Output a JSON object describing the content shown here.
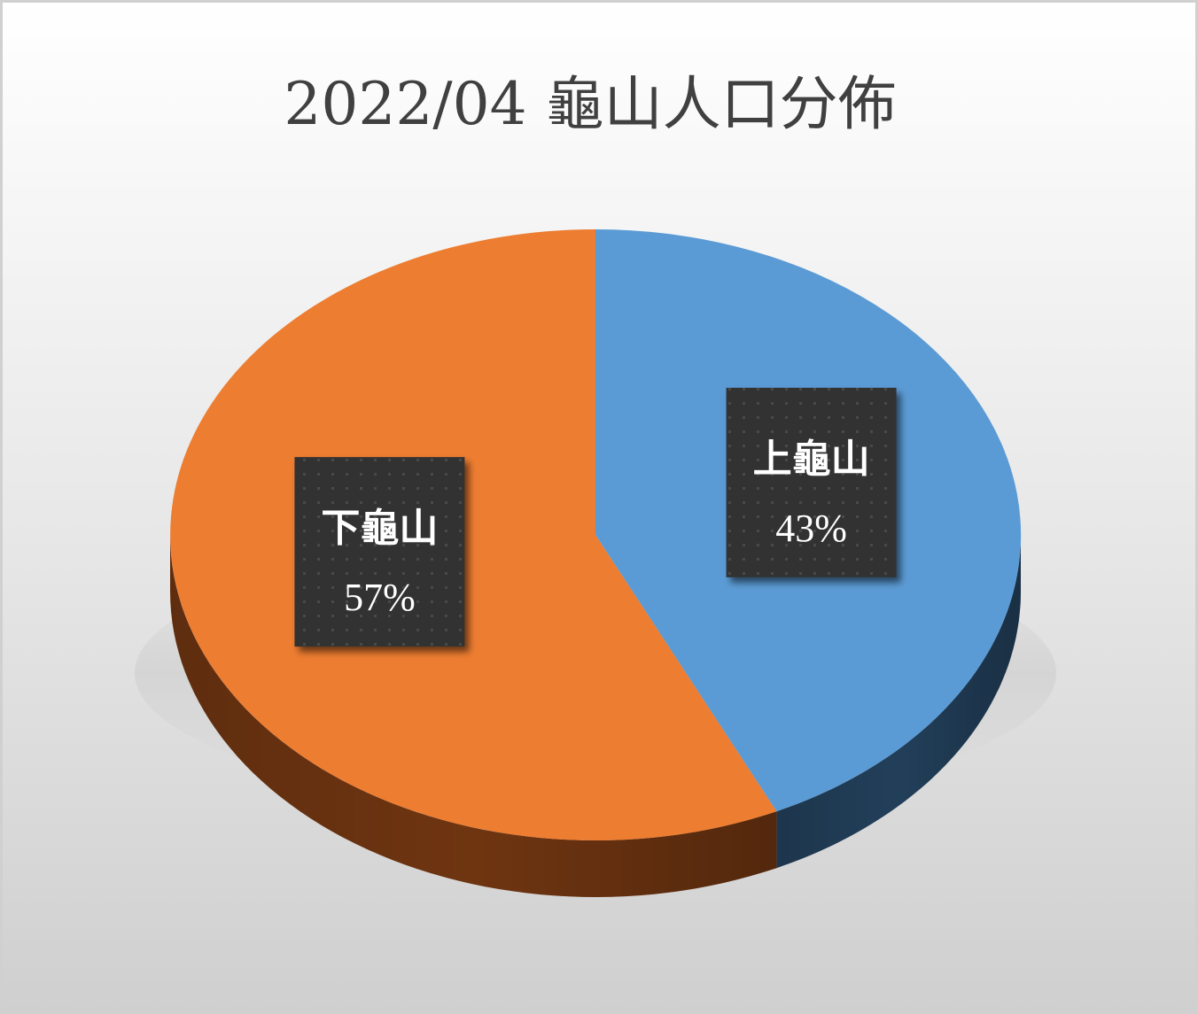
{
  "chart_data": {
    "type": "pie",
    "title": "2022/04 龜山人口分佈",
    "slices": [
      {
        "label": "上龜山",
        "percent_label": "43%",
        "value": 43,
        "color": "#5b9bd5",
        "side_color": "#223f5a"
      },
      {
        "label": "下龜山",
        "percent_label": "57%",
        "value": 57,
        "color": "#ed7d31",
        "side_color": "#6f3511"
      }
    ],
    "legend": "none",
    "start_angle": "12 o'clock",
    "direction": "clockwise",
    "style": "3d"
  }
}
